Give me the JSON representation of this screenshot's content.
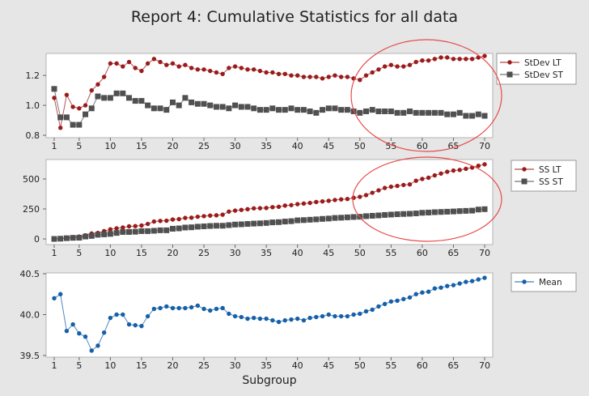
{
  "title": "Report 4: Cumulative Statistics for all data",
  "colors": {
    "lt": "#9b1b1b",
    "st": "#505050",
    "mean": "#1560a8",
    "circle": "#e84a4a"
  },
  "chart_data": [
    {
      "type": "line",
      "name": "stdev",
      "xlabel": "",
      "x_range": [
        1,
        70
      ],
      "x_ticks": [
        1,
        5,
        10,
        15,
        20,
        25,
        30,
        35,
        40,
        45,
        50,
        55,
        60,
        65,
        70
      ],
      "ylim": [
        0.784,
        1.347
      ],
      "y_ticks": [
        0.8,
        1.0,
        1.2
      ],
      "y_tick_labels": [
        "0.8",
        "1.0",
        "1.2"
      ],
      "legend_position": "right",
      "annotation": "red ellipse highlighting subgroups 48-70",
      "series": [
        {
          "name": "StDev LT",
          "marker": "circle",
          "color_key": "lt",
          "values": [
            1.05,
            0.85,
            1.07,
            0.99,
            0.98,
            1.0,
            1.1,
            1.14,
            1.19,
            1.28,
            1.28,
            1.26,
            1.29,
            1.25,
            1.23,
            1.28,
            1.31,
            1.29,
            1.27,
            1.28,
            1.26,
            1.27,
            1.25,
            1.24,
            1.24,
            1.23,
            1.22,
            1.21,
            1.25,
            1.26,
            1.25,
            1.24,
            1.24,
            1.23,
            1.22,
            1.22,
            1.21,
            1.21,
            1.2,
            1.2,
            1.19,
            1.19,
            1.19,
            1.18,
            1.19,
            1.2,
            1.19,
            1.19,
            1.18,
            1.17,
            1.2,
            1.22,
            1.24,
            1.26,
            1.27,
            1.26,
            1.26,
            1.27,
            1.29,
            1.3,
            1.3,
            1.31,
            1.32,
            1.32,
            1.31,
            1.31,
            1.31,
            1.31,
            1.32,
            1.33
          ]
        },
        {
          "name": "StDev ST",
          "marker": "square",
          "color_key": "st",
          "values": [
            1.11,
            0.92,
            0.92,
            0.87,
            0.87,
            0.94,
            0.98,
            1.06,
            1.05,
            1.05,
            1.08,
            1.08,
            1.05,
            1.03,
            1.03,
            1.0,
            0.98,
            0.98,
            0.97,
            1.02,
            1.0,
            1.05,
            1.02,
            1.01,
            1.01,
            1.0,
            0.99,
            0.99,
            0.98,
            1.0,
            0.99,
            0.99,
            0.98,
            0.97,
            0.97,
            0.98,
            0.97,
            0.97,
            0.98,
            0.97,
            0.97,
            0.96,
            0.95,
            0.97,
            0.98,
            0.98,
            0.97,
            0.97,
            0.96,
            0.95,
            0.96,
            0.97,
            0.96,
            0.96,
            0.96,
            0.95,
            0.95,
            0.96,
            0.95,
            0.95,
            0.95,
            0.95,
            0.95,
            0.94,
            0.94,
            0.95,
            0.93,
            0.93,
            0.94,
            0.93
          ]
        }
      ]
    },
    {
      "type": "line",
      "name": "ss",
      "xlabel": "",
      "x_range": [
        1,
        70
      ],
      "x_ticks": [
        1,
        5,
        10,
        15,
        20,
        25,
        30,
        35,
        40,
        45,
        50,
        55,
        60,
        65,
        70
      ],
      "ylim": [
        -47,
        662
      ],
      "y_ticks": [
        0,
        250,
        500
      ],
      "y_tick_labels": [
        "0",
        "250",
        "500"
      ],
      "legend_position": "right",
      "annotation": "red ellipse highlighting subgroups 48-70",
      "series": [
        {
          "name": "SS LT",
          "marker": "circle",
          "color_key": "lt",
          "values": [
            0,
            2,
            10,
            15,
            20,
            30,
            45,
            50,
            65,
            80,
            88,
            95,
            105,
            107,
            112,
            125,
            145,
            150,
            152,
            162,
            165,
            175,
            177,
            185,
            190,
            195,
            197,
            202,
            228,
            236,
            242,
            248,
            255,
            256,
            258,
            265,
            268,
            278,
            282,
            290,
            295,
            300,
            308,
            313,
            318,
            325,
            330,
            333,
            343,
            351,
            365,
            385,
            405,
            425,
            435,
            442,
            450,
            455,
            485,
            500,
            510,
            530,
            545,
            560,
            570,
            575,
            585,
            595,
            610,
            622
          ]
        },
        {
          "name": "SS ST",
          "marker": "square",
          "color_key": "st",
          "values": [
            0,
            2,
            6,
            9,
            10,
            20,
            25,
            35,
            38,
            42,
            50,
            58,
            58,
            60,
            65,
            65,
            68,
            72,
            72,
            85,
            88,
            95,
            97,
            102,
            105,
            108,
            110,
            110,
            115,
            120,
            122,
            125,
            128,
            130,
            133,
            138,
            140,
            145,
            148,
            155,
            157,
            160,
            163,
            167,
            170,
            175,
            177,
            180,
            183,
            185,
            190,
            193,
            196,
            200,
            203,
            206,
            208,
            210,
            213,
            218,
            220,
            223,
            225,
            227,
            229,
            232,
            234,
            236,
            245,
            248
          ]
        }
      ]
    },
    {
      "type": "line",
      "name": "mean",
      "xlabel": "Subgroup",
      "x_range": [
        1,
        70
      ],
      "x_ticks": [
        1,
        5,
        10,
        15,
        20,
        25,
        30,
        35,
        40,
        45,
        50,
        55,
        60,
        65,
        70
      ],
      "ylim": [
        39.48,
        40.51
      ],
      "y_ticks": [
        39.5,
        40.0,
        40.5
      ],
      "y_tick_labels": [
        "39.5",
        "40.0",
        "40.5"
      ],
      "legend_position": "right",
      "series": [
        {
          "name": "Mean",
          "marker": "circle",
          "color_key": "mean",
          "values": [
            40.2,
            40.25,
            39.8,
            39.88,
            39.77,
            39.73,
            39.56,
            39.62,
            39.78,
            39.96,
            40.0,
            40.0,
            39.88,
            39.87,
            39.86,
            39.98,
            40.07,
            40.08,
            40.1,
            40.08,
            40.08,
            40.08,
            40.09,
            40.11,
            40.07,
            40.05,
            40.07,
            40.08,
            40.01,
            39.98,
            39.97,
            39.95,
            39.96,
            39.95,
            39.95,
            39.93,
            39.91,
            39.93,
            39.94,
            39.95,
            39.93,
            39.96,
            39.97,
            39.98,
            40.0,
            39.98,
            39.98,
            39.98,
            40.0,
            40.01,
            40.04,
            40.06,
            40.1,
            40.13,
            40.16,
            40.17,
            40.19,
            40.21,
            40.25,
            40.27,
            40.28,
            40.32,
            40.33,
            40.35,
            40.36,
            40.38,
            40.4,
            40.41,
            40.43,
            40.45
          ]
        }
      ]
    }
  ]
}
